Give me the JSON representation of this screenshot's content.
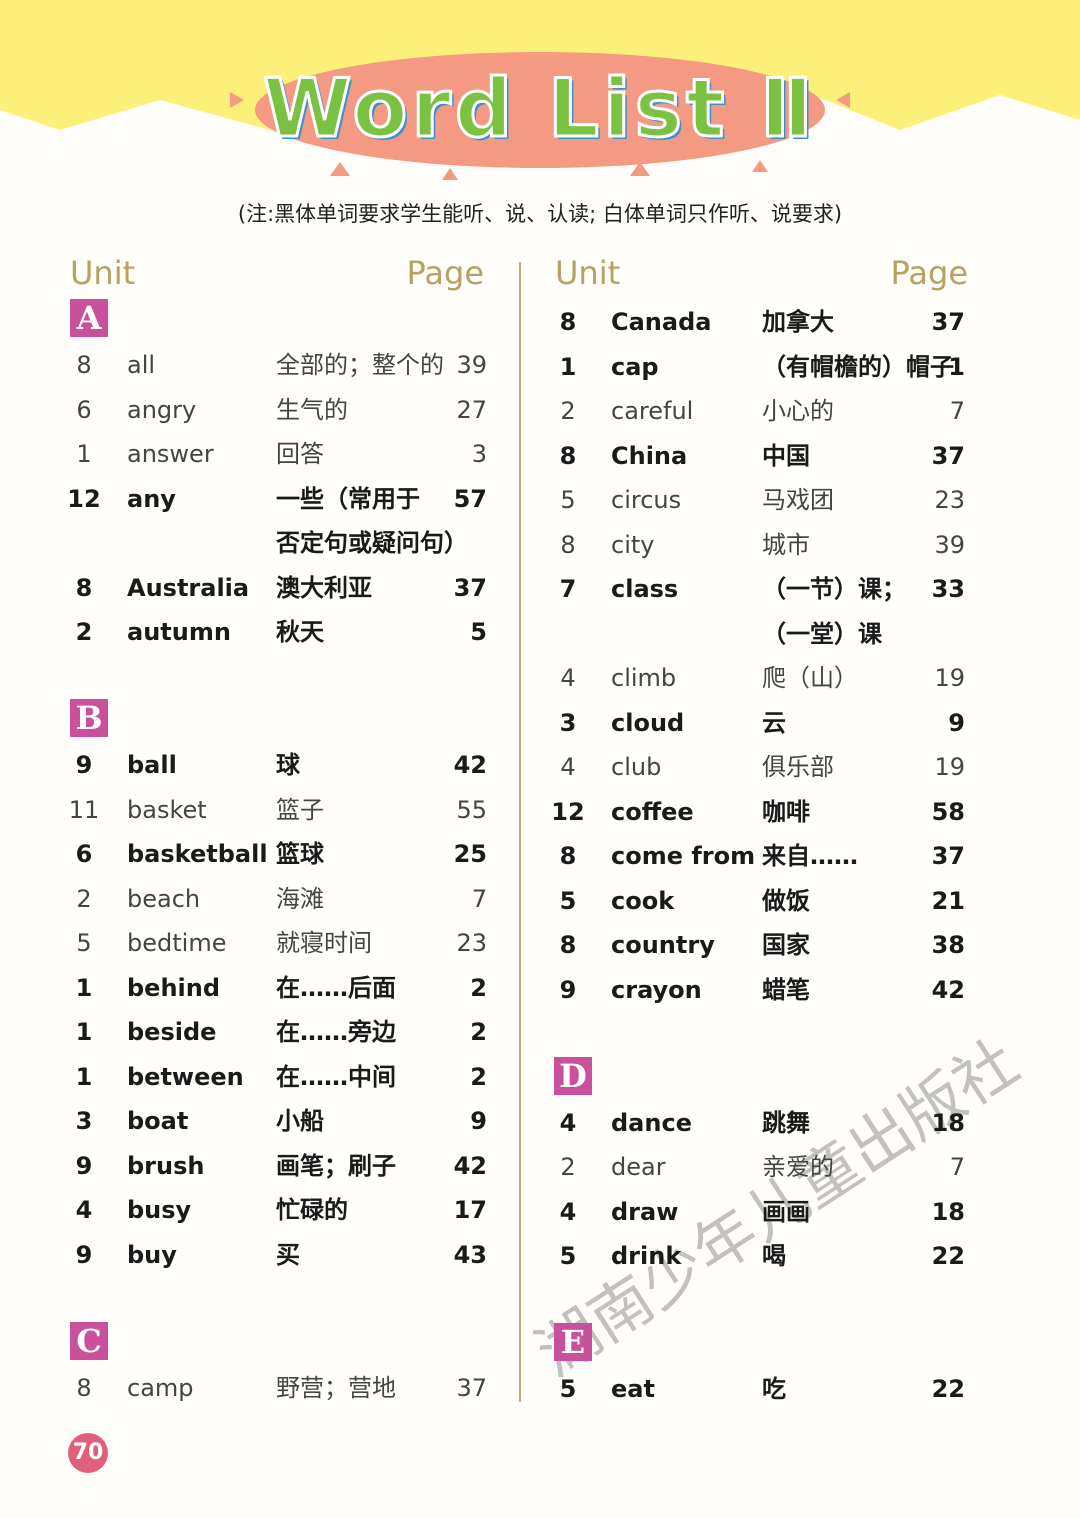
{
  "title": "Word List Ⅱ",
  "note": "(注:黑体单词要求学生能听、说、认读; 白体单词只作听、说要求)",
  "columns": [
    {
      "unit_header": "Unit",
      "page_header": "Page",
      "sections": [
        {
          "letter": "A",
          "entries": [
            {
              "unit": 8,
              "word": "all",
              "meaning": "全部的；整个的",
              "page": 39,
              "bold": false
            },
            {
              "unit": 6,
              "word": "angry",
              "meaning": "生气的",
              "page": 27,
              "bold": false
            },
            {
              "unit": 1,
              "word": "answer",
              "meaning": "回答",
              "page": 3,
              "bold": false
            },
            {
              "unit": 12,
              "word": "any",
              "meaning": "一些（常用于",
              "meaning_line2": "否定句或疑问句）",
              "page": 57,
              "bold": true
            },
            {
              "unit": 8,
              "word": "Australia",
              "meaning": "澳大利亚",
              "page": 37,
              "bold": true
            },
            {
              "unit": 2,
              "word": "autumn",
              "meaning": "秋天",
              "page": 5,
              "bold": true
            }
          ]
        },
        {
          "letter": "B",
          "entries": [
            {
              "unit": 9,
              "word": "ball",
              "meaning": "球",
              "page": 42,
              "bold": true
            },
            {
              "unit": 11,
              "word": "basket",
              "meaning": "篮子",
              "page": 55,
              "bold": false
            },
            {
              "unit": 6,
              "word": "basketball",
              "meaning": "篮球",
              "page": 25,
              "bold": true
            },
            {
              "unit": 2,
              "word": "beach",
              "meaning": "海滩",
              "page": 7,
              "bold": false
            },
            {
              "unit": 5,
              "word": "bedtime",
              "meaning": "就寝时间",
              "page": 23,
              "bold": false
            },
            {
              "unit": 1,
              "word": "behind",
              "meaning": "在……后面",
              "page": 2,
              "bold": true
            },
            {
              "unit": 1,
              "word": "beside",
              "meaning": "在……旁边",
              "page": 2,
              "bold": true
            },
            {
              "unit": 1,
              "word": "between",
              "meaning": "在……中间",
              "page": 2,
              "bold": true
            },
            {
              "unit": 3,
              "word": "boat",
              "meaning": "小船",
              "page": 9,
              "bold": true
            },
            {
              "unit": 9,
              "word": "brush",
              "meaning": "画笔；刷子",
              "page": 42,
              "bold": true
            },
            {
              "unit": 4,
              "word": "busy",
              "meaning": "忙碌的",
              "page": 17,
              "bold": true
            },
            {
              "unit": 9,
              "word": "buy",
              "meaning": "买",
              "page": 43,
              "bold": true
            }
          ]
        },
        {
          "letter": "C",
          "entries": [
            {
              "unit": 8,
              "word": "camp",
              "meaning": "野营；营地",
              "page": 37,
              "bold": false
            }
          ]
        }
      ]
    },
    {
      "unit_header": "Unit",
      "page_header": "Page",
      "sections": [
        {
          "entries": [
            {
              "unit": 8,
              "word": "Canada",
              "meaning": "加拿大",
              "page": 37,
              "bold": true
            },
            {
              "unit": 1,
              "word": "cap",
              "meaning": "（有帽檐的）帽子",
              "page": 1,
              "bold": true
            },
            {
              "unit": 2,
              "word": "careful",
              "meaning": "小心的",
              "page": 7,
              "bold": false
            },
            {
              "unit": 8,
              "word": "China",
              "meaning": "中国",
              "page": 37,
              "bold": true
            },
            {
              "unit": 5,
              "word": "circus",
              "meaning": "马戏团",
              "page": 23,
              "bold": false
            },
            {
              "unit": 8,
              "word": "city",
              "meaning": "城市",
              "page": 39,
              "bold": false
            },
            {
              "unit": 7,
              "word": "class",
              "meaning": "（一节）课；",
              "meaning_line2": "（一堂）课",
              "page": 33,
              "bold": true
            },
            {
              "unit": 4,
              "word": "climb",
              "meaning": "爬（山）",
              "page": 19,
              "bold": false
            },
            {
              "unit": 3,
              "word": "cloud",
              "meaning": "云",
              "page": 9,
              "bold": true
            },
            {
              "unit": 4,
              "word": "club",
              "meaning": "俱乐部",
              "page": 19,
              "bold": false
            },
            {
              "unit": 12,
              "word": "coffee",
              "meaning": "咖啡",
              "page": 58,
              "bold": true
            },
            {
              "unit": 8,
              "word": "come from",
              "meaning": "来自……",
              "page": 37,
              "bold": true
            },
            {
              "unit": 5,
              "word": "cook",
              "meaning": "做饭",
              "page": 21,
              "bold": true
            },
            {
              "unit": 8,
              "word": "country",
              "meaning": "国家",
              "page": 38,
              "bold": true
            },
            {
              "unit": 9,
              "word": "crayon",
              "meaning": "蜡笔",
              "page": 42,
              "bold": true
            }
          ]
        },
        {
          "letter": "D",
          "entries": [
            {
              "unit": 4,
              "word": "dance",
              "meaning": "跳舞",
              "page": 18,
              "bold": true
            },
            {
              "unit": 2,
              "word": "dear",
              "meaning": "亲爱的",
              "page": 7,
              "bold": false
            },
            {
              "unit": 4,
              "word": "draw",
              "meaning": "画画",
              "page": 18,
              "bold": true
            },
            {
              "unit": 5,
              "word": "drink",
              "meaning": "喝",
              "page": 22,
              "bold": true
            }
          ]
        },
        {
          "letter": "E",
          "entries": [
            {
              "unit": 5,
              "word": "eat",
              "meaning": "吃",
              "page": 22,
              "bold": true
            }
          ]
        }
      ]
    }
  ],
  "page_number": "70",
  "watermark": "湖南少年儿童出版社"
}
